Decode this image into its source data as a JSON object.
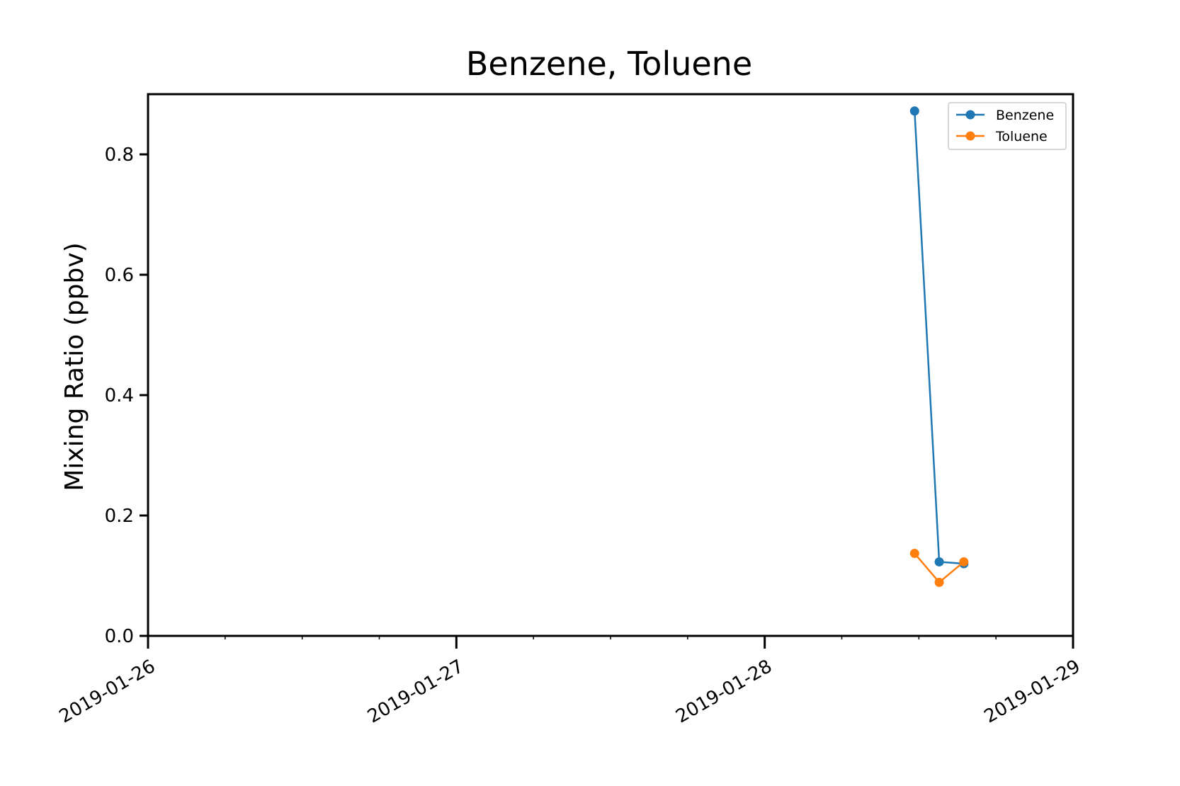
{
  "chart_data": {
    "type": "line",
    "title": "Benzene, Toluene",
    "ylabel": "Mixing Ratio (ppbv)",
    "xlabel": "",
    "xlim": [
      "2019-01-26T00:00",
      "2019-01-29T00:00"
    ],
    "ylim": [
      0,
      0.9
    ],
    "x_ticks": [
      "2019-01-26",
      "2019-01-27",
      "2019-01-28",
      "2019-01-29"
    ],
    "y_ticks": [
      "0.0",
      "0.2",
      "0.4",
      "0.6",
      "0.8"
    ],
    "grid": false,
    "legend_position": "top-right",
    "series": [
      {
        "name": "Benzene",
        "color": "#1f77b4",
        "x": [
          "2019-01-28T11:40",
          "2019-01-28T13:35",
          "2019-01-28T15:30"
        ],
        "y": [
          0.872,
          0.123,
          0.12
        ]
      },
      {
        "name": "Toluene",
        "color": "#ff7f0e",
        "x": [
          "2019-01-28T11:40",
          "2019-01-28T13:35",
          "2019-01-28T15:30"
        ],
        "y": [
          0.137,
          0.089,
          0.123
        ]
      }
    ]
  }
}
